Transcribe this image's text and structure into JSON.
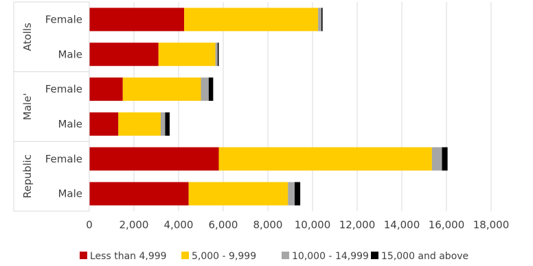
{
  "chart_data": {
    "type": "bar",
    "orientation": "horizontal",
    "stacked": true,
    "groups": [
      {
        "label": "Atolls",
        "categories": [
          "Female",
          "Male"
        ]
      },
      {
        "label": "Male'",
        "categories": [
          "Female",
          "Male"
        ]
      },
      {
        "label": "Republic",
        "categories": [
          "Female",
          "Male"
        ]
      }
    ],
    "series": [
      {
        "name": "Less than 4,999",
        "color": "#C00000",
        "values": [
          4250,
          3100,
          1500,
          1300,
          5800,
          4450
        ]
      },
      {
        "name": "5,000 - 9,999",
        "color": "#FFCC00",
        "values": [
          6000,
          2550,
          3500,
          1900,
          9550,
          4450
        ]
      },
      {
        "name": "10,000 - 14,999",
        "color": "#A6A6A6",
        "values": [
          150,
          100,
          350,
          200,
          450,
          300
        ]
      },
      {
        "name": "15,000 and above",
        "color": "#000000",
        "values": [
          50,
          50,
          200,
          200,
          250,
          250
        ]
      }
    ],
    "xlim": [
      0,
      18000
    ],
    "xticks": [
      0,
      2000,
      4000,
      6000,
      8000,
      10000,
      12000,
      14000,
      16000,
      18000
    ],
    "xtick_labels": [
      "0",
      "2,000",
      "4,000",
      "6,000",
      "8,000",
      "10,000",
      "12,000",
      "14,000",
      "16,000",
      "18,000"
    ],
    "grid": true,
    "legend": "bottom"
  }
}
